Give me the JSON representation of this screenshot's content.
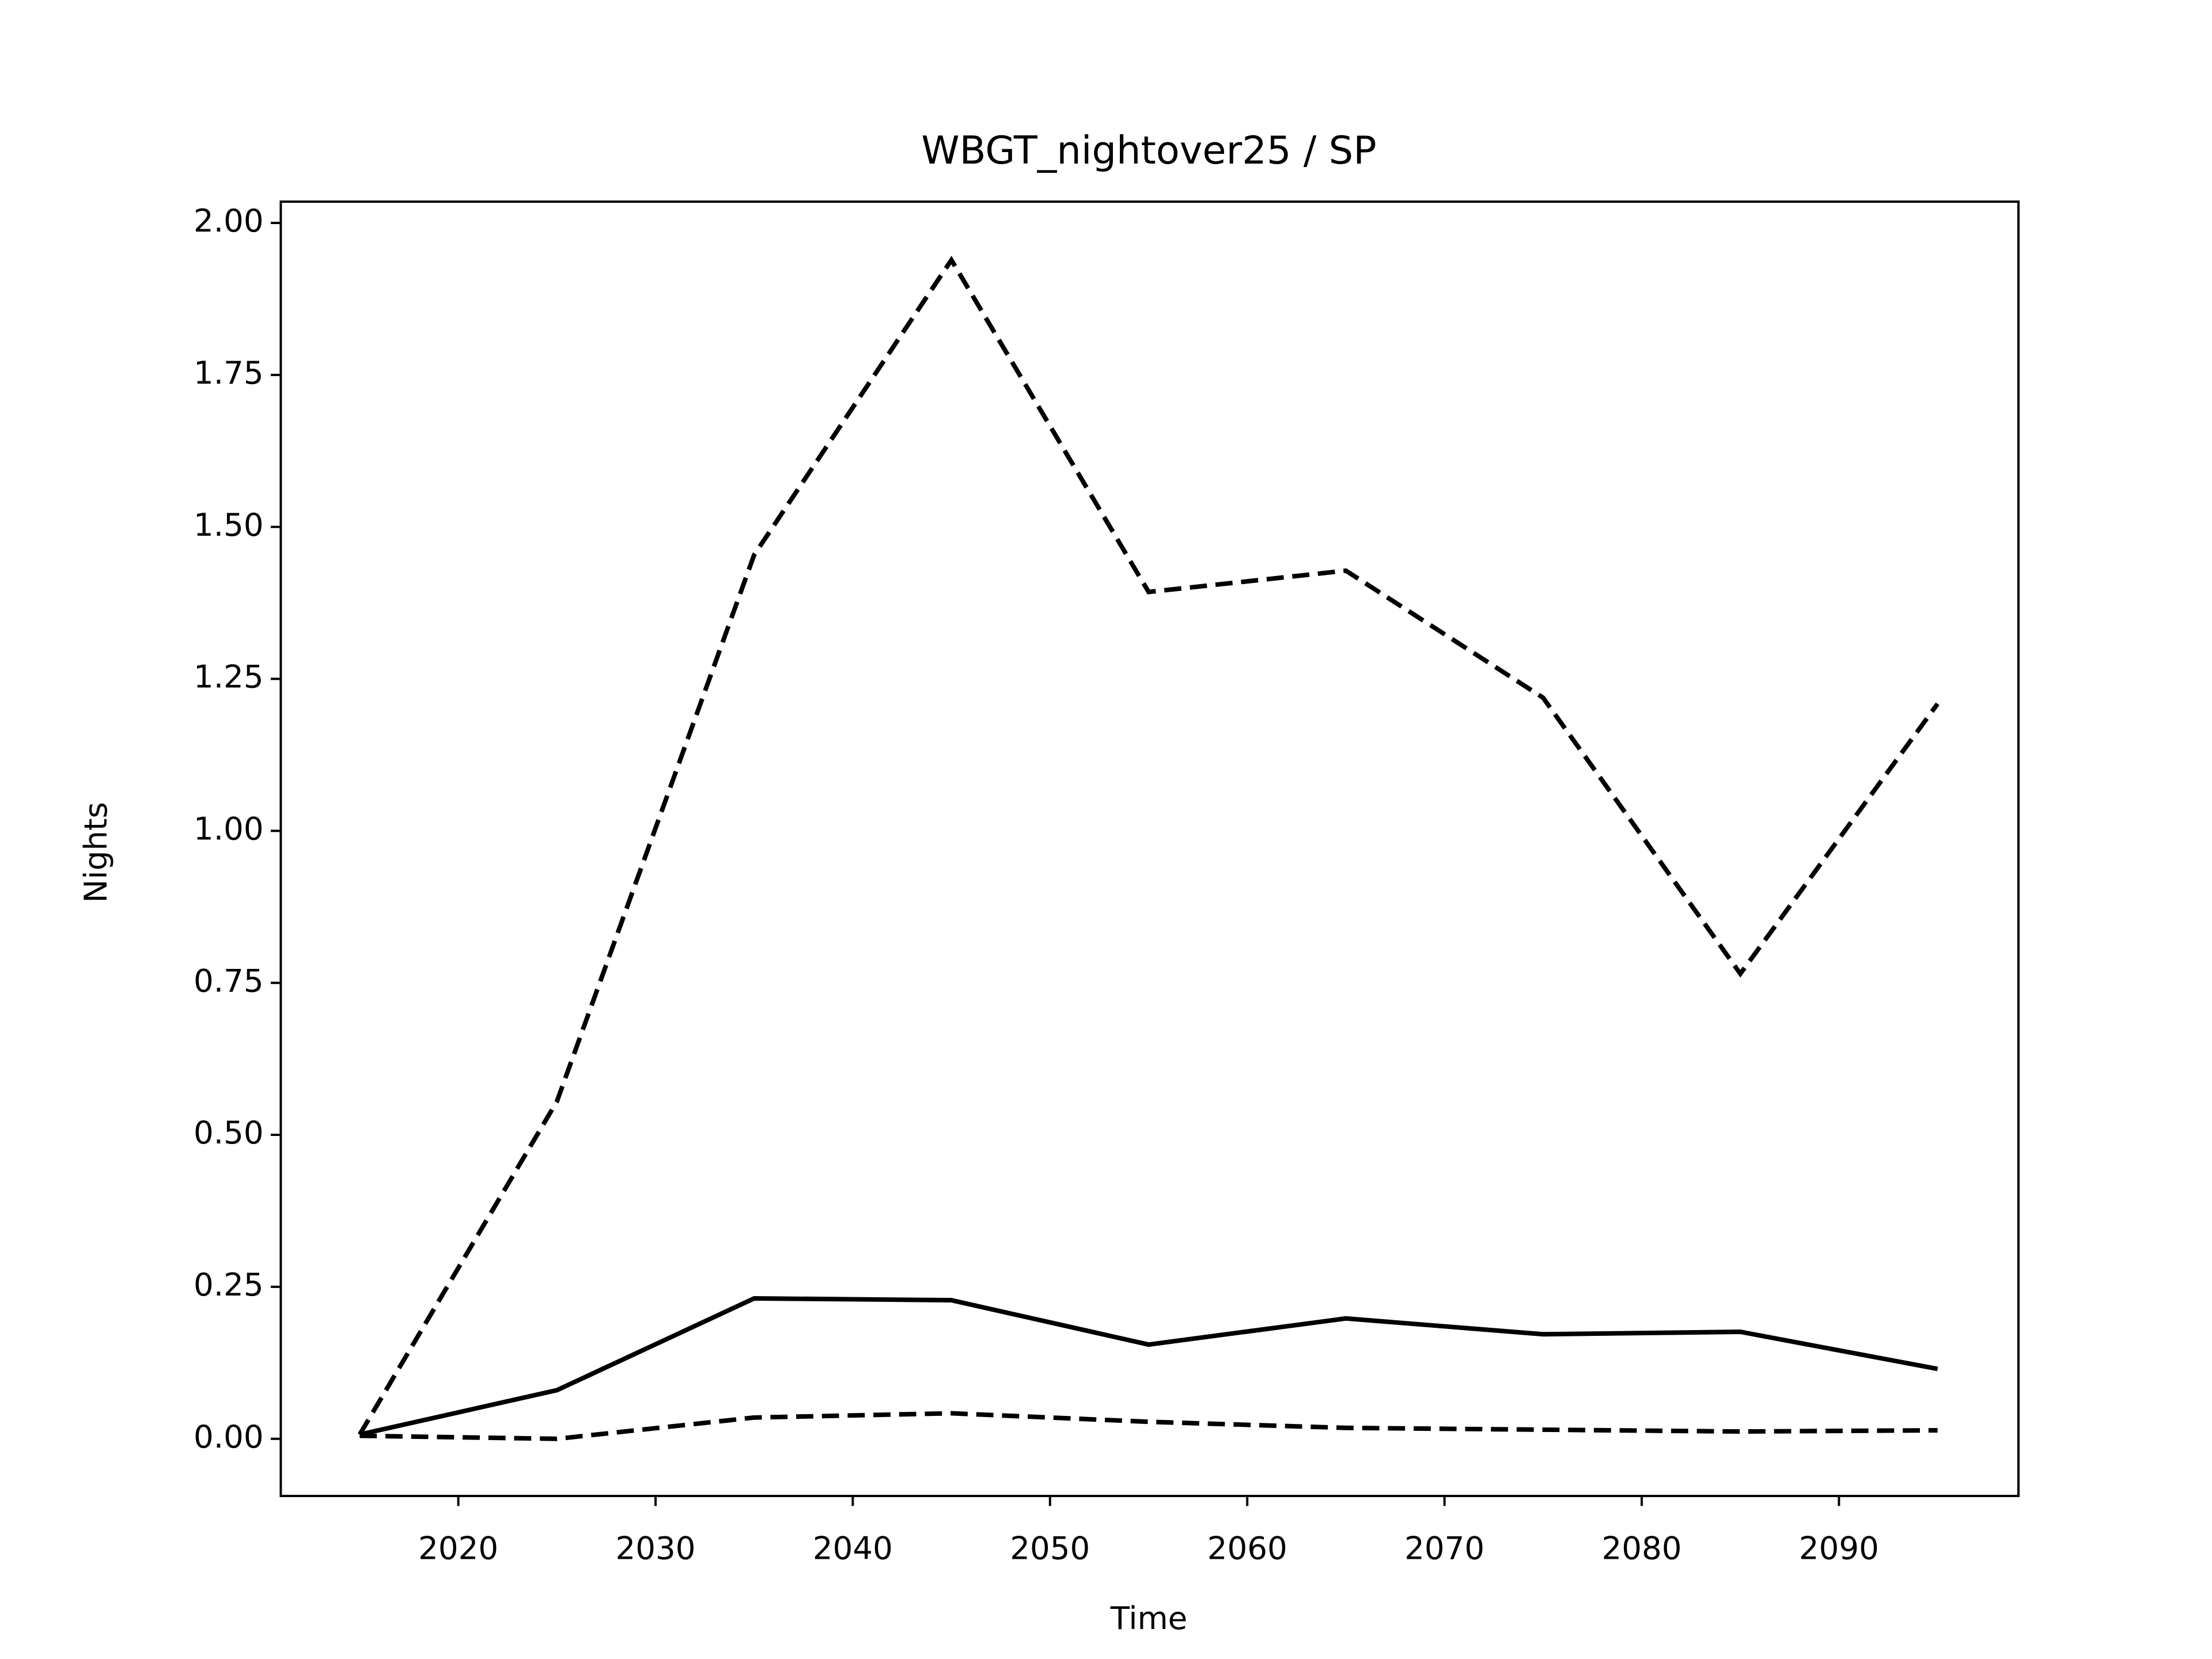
{
  "chart_data": {
    "type": "line",
    "title": "WBGT_nightover25 / SP",
    "x_label": "Time",
    "y_label": "Nights",
    "x": [
      2015,
      2025,
      2035,
      2045,
      2055,
      2065,
      2075,
      2085,
      2095
    ],
    "series": [
      {
        "color": "#000000",
        "style": "dashed",
        "values": [
          0.007,
          0.555,
          1.454,
          1.939,
          1.393,
          1.428,
          1.219,
          0.765,
          1.209
        ]
      },
      {
        "color": "#000000",
        "style": "solid",
        "values": [
          0.007,
          0.08,
          0.231,
          0.228,
          0.155,
          0.198,
          0.172,
          0.176,
          0.115
        ]
      },
      {
        "color": "#000000",
        "style": "dashed",
        "values": [
          0.005,
          0.0,
          0.035,
          0.042,
          0.028,
          0.018,
          0.015,
          0.012,
          0.014
        ]
      }
    ],
    "xlim": [
      2011.0,
      2099.1
    ],
    "ylim": [
      -0.094,
      2.035
    ],
    "xticks": [
      2020,
      2030,
      2040,
      2050,
      2060,
      2070,
      2080,
      2090
    ],
    "yticks": [
      {
        "value": 0,
        "label": "0.00"
      },
      {
        "value": 0.25,
        "label": "0.25"
      },
      {
        "value": 0.5,
        "label": "0.50"
      },
      {
        "value": 0.75,
        "label": "0.75"
      },
      {
        "value": 1,
        "label": "1.00"
      },
      {
        "value": 1.25,
        "label": "1.25"
      },
      {
        "value": 1.5,
        "label": "1.50"
      },
      {
        "value": 1.75,
        "label": "1.75"
      },
      {
        "value": 2,
        "label": "2.00"
      }
    ],
    "grid": false
  }
}
